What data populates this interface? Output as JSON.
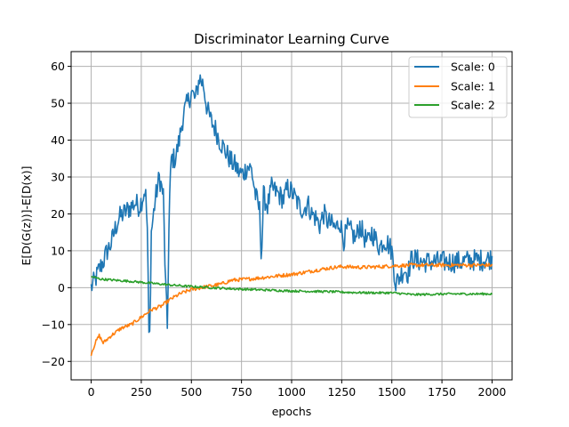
{
  "chart_data": {
    "type": "line",
    "title": "Discriminator Learning Curve",
    "xlabel": "epochs",
    "ylabel": "E[D(G(z))]-E[D(x)]",
    "xlim": [
      -100,
      2100
    ],
    "ylim": [
      -25,
      64
    ],
    "xticks": [
      0,
      250,
      500,
      750,
      1000,
      1250,
      1500,
      1750,
      2000
    ],
    "yticks": [
      -20,
      -10,
      0,
      10,
      20,
      30,
      40,
      50,
      60
    ],
    "grid": true,
    "legend_position": "top-right",
    "series": [
      {
        "name": "Scale: 0",
        "color": "#1f77b4",
        "noise": 3.0,
        "x": [
          0,
          20,
          40,
          60,
          80,
          100,
          120,
          140,
          160,
          180,
          200,
          220,
          240,
          260,
          270,
          280,
          290,
          300,
          320,
          340,
          360,
          370,
          380,
          390,
          400,
          420,
          440,
          460,
          480,
          500,
          520,
          540,
          560,
          580,
          600,
          620,
          640,
          660,
          680,
          700,
          720,
          740,
          760,
          780,
          800,
          820,
          840,
          850,
          860,
          880,
          900,
          920,
          940,
          960,
          980,
          1000,
          1020,
          1040,
          1060,
          1080,
          1100,
          1120,
          1140,
          1160,
          1180,
          1200,
          1220,
          1240,
          1260,
          1280,
          1300,
          1320,
          1340,
          1360,
          1380,
          1400,
          1420,
          1440,
          1460,
          1480,
          1500,
          1520,
          1540,
          1560,
          1580,
          1600,
          1650,
          1700,
          1750,
          1800,
          1850,
          1900,
          1950,
          2000
        ],
        "y": [
          0,
          2,
          5,
          7,
          10,
          12,
          16,
          19,
          20,
          21,
          22,
          23,
          22,
          25,
          27,
          16,
          -20,
          15,
          24,
          30,
          25,
          3,
          -11,
          22,
          35,
          35,
          40,
          47,
          50,
          53,
          51,
          57,
          55,
          48,
          45,
          43,
          40,
          38,
          36,
          34,
          33,
          31,
          31,
          33,
          32,
          25,
          21,
          8,
          25,
          22,
          27,
          26,
          25,
          24,
          27,
          26,
          24,
          22,
          21,
          23,
          20,
          19,
          17,
          20,
          18,
          17,
          16,
          18,
          13,
          16,
          15,
          13,
          17,
          14,
          12,
          15,
          13,
          11,
          13,
          12,
          10,
          1,
          3,
          5,
          4,
          8,
          7,
          7,
          7,
          7,
          7,
          7.5,
          7.5,
          8
        ]
      },
      {
        "name": "Scale: 1",
        "color": "#ff7f0e",
        "noise": 0.5,
        "x": [
          0,
          20,
          40,
          60,
          100,
          150,
          200,
          250,
          300,
          350,
          400,
          450,
          500,
          550,
          600,
          650,
          700,
          750,
          800,
          850,
          900,
          950,
          1000,
          1050,
          1100,
          1150,
          1200,
          1250,
          1300,
          1350,
          1400,
          1450,
          1500,
          1550,
          1600,
          1650,
          1700,
          1750,
          1800,
          1900,
          2000
        ],
        "y": [
          -18,
          -15,
          -13,
          -15,
          -13,
          -11,
          -10,
          -8,
          -6,
          -5,
          -3,
          -1.5,
          -0.5,
          0,
          0.5,
          1,
          2,
          2.2,
          2.4,
          2.7,
          3,
          3.3,
          3.6,
          4,
          4.5,
          5,
          5.4,
          5.7,
          5.6,
          5.5,
          5.6,
          5.7,
          5.9,
          6,
          6.1,
          6.1,
          6.1,
          6.1,
          6.1,
          6.1,
          6.1
        ]
      },
      {
        "name": "Scale: 2",
        "color": "#2ca02c",
        "noise": 0.3,
        "x": [
          0,
          50,
          100,
          200,
          300,
          400,
          500,
          600,
          700,
          800,
          900,
          1000,
          1100,
          1200,
          1300,
          1400,
          1500,
          1550,
          1600,
          1700,
          1800,
          1900,
          2000
        ],
        "y": [
          3,
          2.3,
          2.1,
          1.7,
          1.2,
          0.7,
          0.3,
          0,
          -0.3,
          -0.5,
          -0.7,
          -0.9,
          -1,
          -1.1,
          -1.3,
          -1.4,
          -1.4,
          -1.6,
          -1.9,
          -1.8,
          -1.7,
          -1.7,
          -1.7
        ]
      }
    ]
  }
}
